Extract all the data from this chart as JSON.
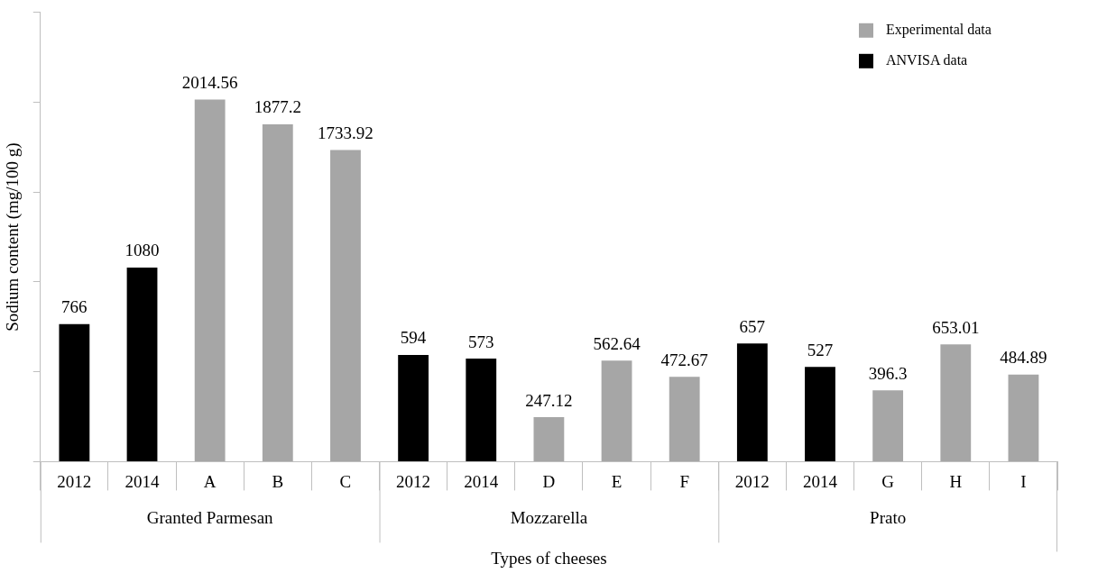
{
  "chart_data": {
    "type": "bar",
    "xlabel": "Types of cheeses",
    "ylabel": "Sodium content (mg/100 g)",
    "categories": [
      "2012",
      "2014",
      "A",
      "B",
      "C",
      "2012",
      "2014",
      "D",
      "E",
      "F",
      "2012",
      "2014",
      "G",
      "H",
      "I"
    ],
    "series": [
      {
        "name": "Experimental data",
        "color": "#a6a6a6",
        "values": [
          null,
          null,
          2014.56,
          1877.2,
          1733.92,
          null,
          null,
          247.12,
          562.64,
          472.67,
          null,
          null,
          396.3,
          653.01,
          484.89
        ]
      },
      {
        "name": "ANVISA data",
        "color": "#000000",
        "values": [
          766,
          1080,
          null,
          null,
          null,
          594,
          573,
          null,
          null,
          null,
          657,
          527,
          null,
          null,
          null
        ]
      }
    ],
    "annotations": [
      "Granted Parmesan",
      "Mozzarella",
      "Prato"
    ],
    "ylim": [
      0,
      2500
    ],
    "yticks": [
      {
        "value": 0,
        "label": null
      },
      {
        "value": 500,
        "label": null
      },
      {
        "value": 1000,
        "label": null
      },
      {
        "value": 1500,
        "label": null
      },
      {
        "value": 2000,
        "label": null
      },
      {
        "value": 2500,
        "label": null
      }
    ],
    "data_labels": true,
    "grid": false,
    "legend": "top right"
  }
}
